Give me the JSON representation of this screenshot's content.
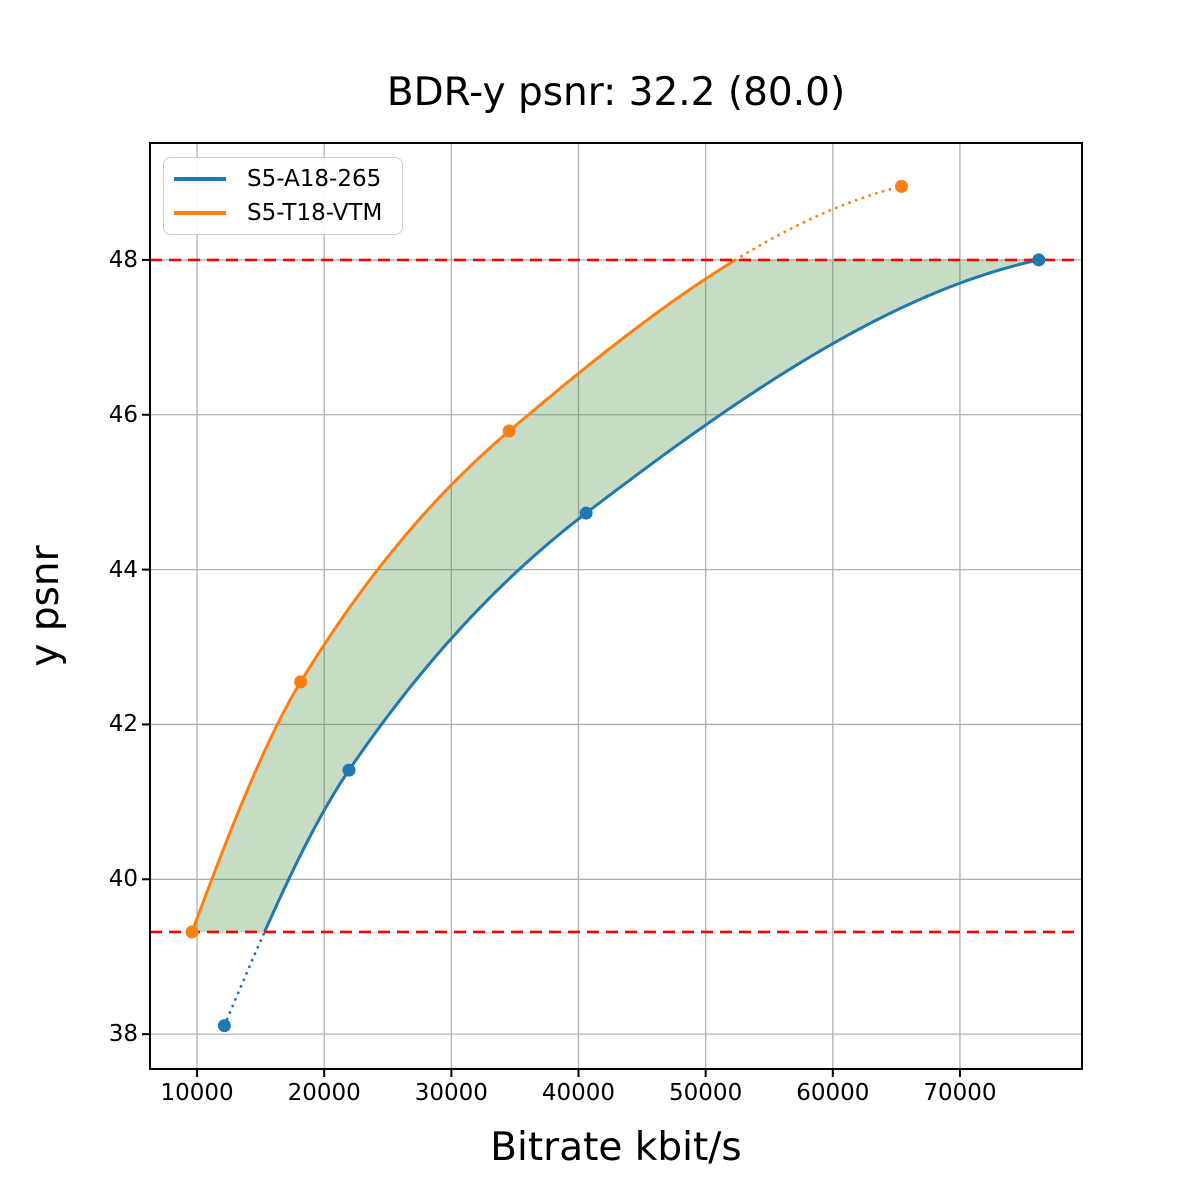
{
  "chart_data": {
    "type": "line",
    "title": "BDR-y psnr: 32.2 (80.0)",
    "xlabel": "Bitrate kbit/s",
    "ylabel": "y psnr",
    "xlim": [
      6300,
      79600
    ],
    "ylim": [
      37.55,
      49.51
    ],
    "xticks": [
      10000,
      20000,
      30000,
      40000,
      50000,
      60000,
      70000
    ],
    "yticks": [
      38,
      40,
      42,
      44,
      46,
      48
    ],
    "grid": true,
    "legend": {
      "position": "upper-left",
      "entries": [
        "S5-A18-265",
        "S5-T18-VTM"
      ]
    },
    "series": [
      {
        "name": "S5-A18-265",
        "color": "#1f77b4",
        "style": "solid-inside-band-dotted-outside",
        "points": [
          [
            12150,
            38.11
          ],
          [
            21950,
            41.41
          ],
          [
            40600,
            44.73
          ],
          [
            76200,
            48.0
          ]
        ]
      },
      {
        "name": "S5-T18-VTM",
        "color": "#ff7f0e",
        "style": "solid-inside-band-dotted-outside",
        "points": [
          [
            9600,
            39.32
          ],
          [
            18150,
            42.55
          ],
          [
            34550,
            45.79
          ],
          [
            65400,
            48.95
          ]
        ]
      }
    ],
    "hlines": [
      {
        "y": 48.0,
        "color": "#ff0000",
        "style": "dashed"
      },
      {
        "y": 39.32,
        "color": "#ff0000",
        "style": "dashed"
      }
    ],
    "shaded_region": {
      "between": [
        "S5-T18-VTM",
        "S5-A18-265"
      ],
      "y_range": [
        39.32,
        48.0
      ],
      "color": "#468c3c",
      "alpha": 0.3
    },
    "colors": {
      "grid": "#b0b0b0",
      "spine": "#000000",
      "tick": "#000000",
      "background": "#ffffff"
    }
  }
}
